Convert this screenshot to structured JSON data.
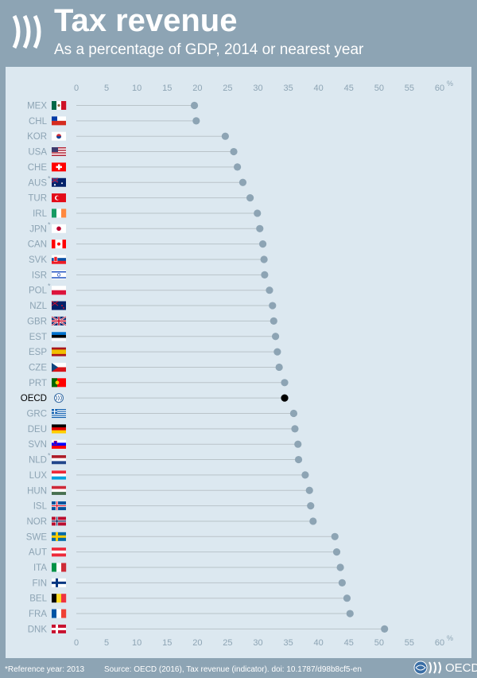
{
  "header": {
    "title": "Tax revenue",
    "subtitle": "As a percentage of GDP, 2014 or nearest year"
  },
  "footer": {
    "note": "*Reference year: 2013",
    "source": "Source: OECD (2016), Tax revenue (indicator). doi: 10.1787/d98b8cf5-en",
    "logo_text": "OECD"
  },
  "colors": {
    "background": "#8da4b4",
    "panel": "#dce8f0",
    "dot": "#8da4b4",
    "highlight_dot": "#000000",
    "axis_text": "#8da4b4"
  },
  "chart_data": {
    "type": "scatter",
    "orientation": "horizontal dot plot",
    "title": "Tax revenue",
    "subtitle": "As a percentage of GDP, 2014 or nearest year",
    "xunit": "%",
    "xlim": [
      0,
      60
    ],
    "xticks": [
      0,
      5,
      10,
      15,
      20,
      25,
      30,
      35,
      40,
      45,
      50,
      55,
      60
    ],
    "grid": false,
    "highlight": "OECD",
    "categories": [
      "MEX",
      "CHL",
      "KOR",
      "USA",
      "CHE",
      "AUS",
      "TUR",
      "IRL",
      "JPN",
      "CAN",
      "SVK",
      "ISR",
      "POL",
      "NZL",
      "GBR",
      "EST",
      "ESP",
      "CZE",
      "PRT",
      "OECD",
      "GRC",
      "DEU",
      "SVN",
      "NLD",
      "LUX",
      "HUN",
      "ISL",
      "NOR",
      "SWE",
      "AUT",
      "ITA",
      "FIN",
      "BEL",
      "FRA",
      "DNK"
    ],
    "reference_2013": [
      "AUS",
      "JPN",
      "POL",
      "NLD"
    ],
    "values": [
      19.5,
      19.8,
      24.6,
      26.0,
      26.6,
      27.5,
      28.7,
      29.9,
      30.3,
      30.8,
      31.0,
      31.1,
      31.9,
      32.4,
      32.6,
      32.9,
      33.2,
      33.5,
      34.4,
      34.4,
      35.9,
      36.1,
      36.6,
      36.7,
      37.8,
      38.5,
      38.7,
      39.1,
      42.7,
      43.0,
      43.6,
      43.9,
      44.7,
      45.2,
      50.9
    ],
    "flags": {
      "MEX": "mexico-flag",
      "CHL": "chile-flag",
      "KOR": "korea-flag",
      "USA": "usa-flag",
      "CHE": "switzerland-flag",
      "AUS": "australia-flag",
      "TUR": "turkey-flag",
      "IRL": "ireland-flag",
      "JPN": "japan-flag",
      "CAN": "canada-flag",
      "SVK": "slovakia-flag",
      "ISR": "israel-flag",
      "POL": "poland-flag",
      "NZL": "new-zealand-flag",
      "GBR": "uk-flag",
      "EST": "estonia-flag",
      "ESP": "spain-flag",
      "CZE": "czech-flag",
      "PRT": "portugal-flag",
      "OECD": "oecd-logo-icon",
      "GRC": "greece-flag",
      "DEU": "germany-flag",
      "SVN": "slovenia-flag",
      "NLD": "netherlands-flag",
      "LUX": "luxembourg-flag",
      "HUN": "hungary-flag",
      "ISL": "iceland-flag",
      "NOR": "norway-flag",
      "SWE": "sweden-flag",
      "AUT": "austria-flag",
      "ITA": "italy-flag",
      "FIN": "finland-flag",
      "BEL": "belgium-flag",
      "FRA": "france-flag",
      "DNK": "denmark-flag"
    }
  }
}
